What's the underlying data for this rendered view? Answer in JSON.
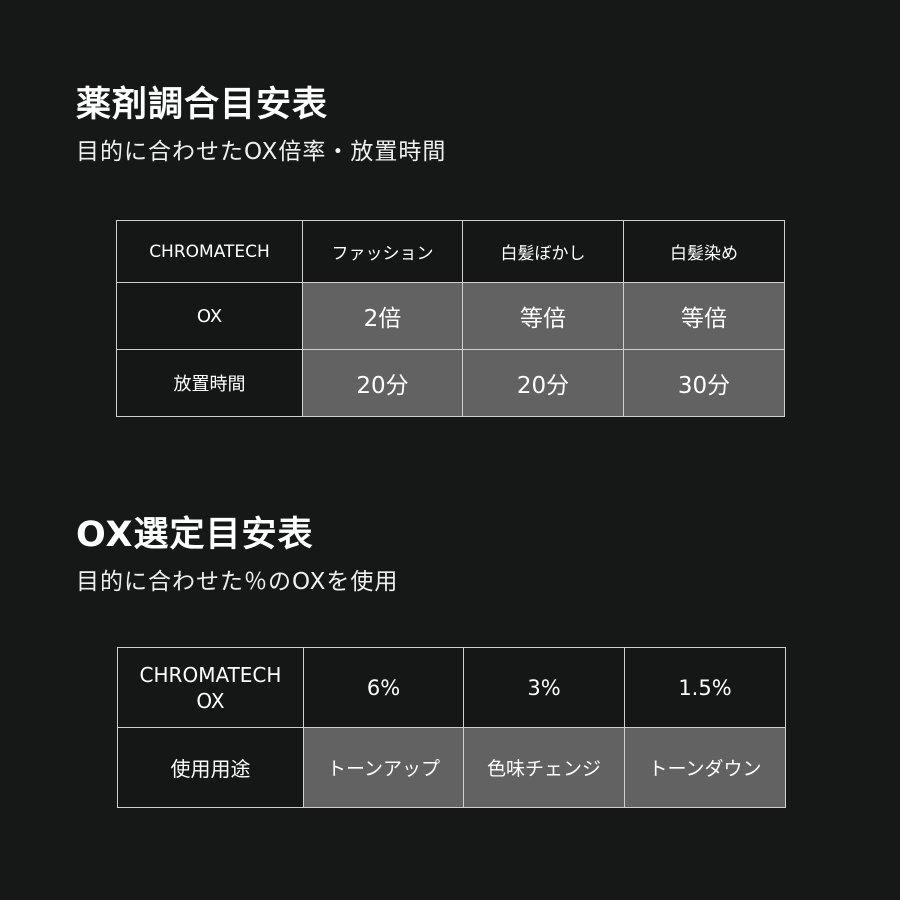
{
  "section1": {
    "title": "薬剤調合目安表",
    "subtitle": "目的に合わせたOX倍率・放置時間",
    "table": {
      "header": [
        "CHROMATECH",
        "ファッション",
        "白髪ぼかし",
        "白髪染め"
      ],
      "rows": [
        {
          "label": "OX",
          "values": [
            "2倍",
            "等倍",
            "等倍"
          ]
        },
        {
          "label": "放置時間",
          "values": [
            "20分",
            "20分",
            "30分"
          ]
        }
      ]
    }
  },
  "section2": {
    "title": "OX選定目安表",
    "subtitle": "目的に合わせた％のOXを使用",
    "table": {
      "header_line1": "CHROMATECH",
      "header_line2": "OX",
      "percentages": [
        "6%",
        "3%",
        "1.5%"
      ],
      "row_label": "使用用途",
      "uses": [
        "トーンアップ",
        "色味チェンジ",
        "トーンダウン"
      ]
    }
  },
  "colors": {
    "background": "#161818",
    "cell_dark": "#151717",
    "cell_gray": "#626262",
    "border": "#cfcfcf"
  }
}
